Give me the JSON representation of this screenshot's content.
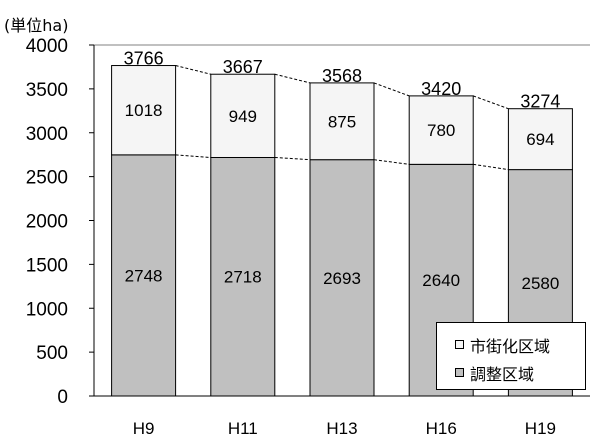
{
  "unit_label": "(単位ha)",
  "chart_data": {
    "type": "bar",
    "stacked": true,
    "categories": [
      "H9",
      "H11",
      "H13",
      "H16",
      "H19"
    ],
    "series": [
      {
        "name": "調整区域",
        "values": [
          2748,
          2718,
          2693,
          2640,
          2580
        ],
        "color": "#c0c0c0"
      },
      {
        "name": "市街化区域",
        "values": [
          1018,
          949,
          875,
          780,
          694
        ],
        "color": "#f5f5f5"
      }
    ],
    "totals": [
      3766,
      3667,
      3568,
      3420,
      3274
    ],
    "ylim": [
      0,
      4000
    ],
    "yticks": [
      0,
      500,
      1000,
      1500,
      2000,
      2500,
      3000,
      3500,
      4000
    ],
    "grid": false,
    "legend_position": "bottom-right",
    "connector_lines": "dashed"
  },
  "legend": {
    "items": [
      {
        "label": "市街化区域",
        "color": "#f5f5f5"
      },
      {
        "label": "調整区域",
        "color": "#c0c0c0"
      }
    ]
  }
}
